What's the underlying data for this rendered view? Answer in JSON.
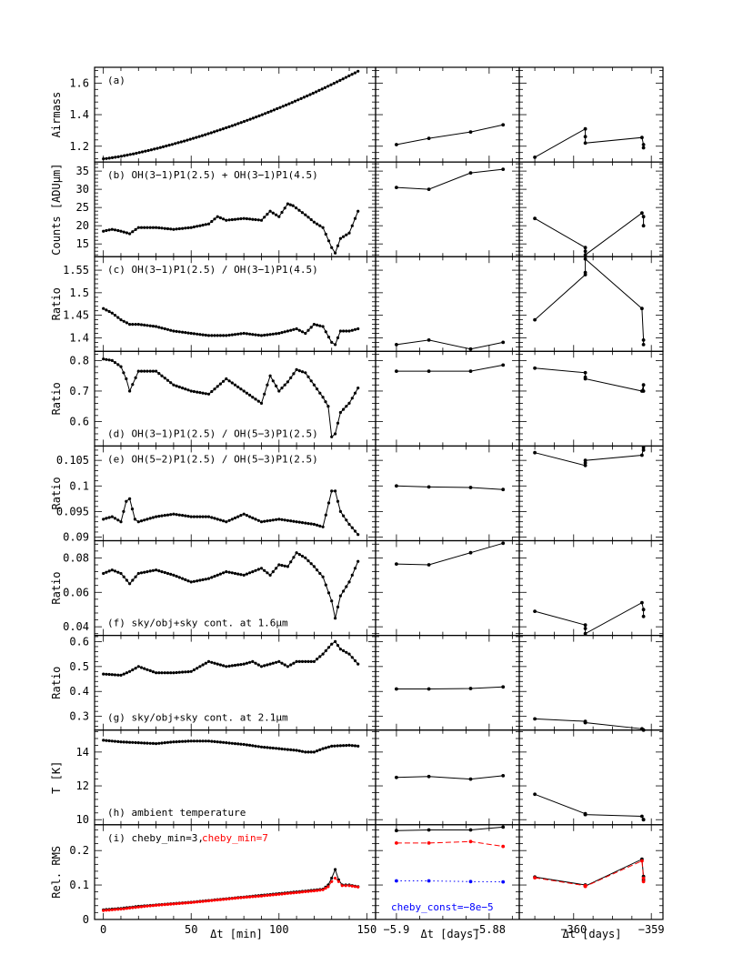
{
  "figure": {
    "x_axis_labels": [
      "Δt [min]",
      "Δt [days]",
      "Δt [days]"
    ],
    "left_ticks": [
      "0",
      "50",
      "100",
      "150"
    ],
    "mid_ticks": [
      "−5.9",
      "−5.88"
    ],
    "right_ticks": [
      "−360",
      "−359"
    ]
  },
  "panels": [
    {
      "id": "a",
      "ylabel": "Airmass",
      "label": "(a)",
      "ticks": [
        "1.2",
        "1.4",
        "1.6"
      ]
    },
    {
      "id": "b",
      "ylabel": "Counts [ADUμm]",
      "label": "(b) OH(3−1)P1(2.5) + OH(3−1)P1(4.5)",
      "ticks": [
        "15",
        "20",
        "25",
        "30",
        "35"
      ]
    },
    {
      "id": "c",
      "ylabel": "Ratio",
      "label": "(c) OH(3−1)P1(2.5) / OH(3−1)P1(4.5)",
      "ticks": [
        "1.4",
        "1.45",
        "1.5",
        "1.55"
      ]
    },
    {
      "id": "d",
      "ylabel": "Ratio",
      "label": "(d) OH(3−1)P1(2.5) / OH(5−3)P1(2.5)",
      "ticks": [
        "0.6",
        "0.7",
        "0.8"
      ]
    },
    {
      "id": "e",
      "ylabel": "Ratio",
      "label": "(e) OH(5−2)P1(2.5) / OH(5−3)P1(2.5)",
      "ticks": [
        "0.09",
        "0.095",
        "0.1",
        "0.105"
      ]
    },
    {
      "id": "f",
      "ylabel": "Ratio",
      "label": "(f) sky/obj+sky cont. at 1.6μm",
      "ticks": [
        "0.04",
        "0.06",
        "0.08"
      ]
    },
    {
      "id": "g",
      "ylabel": "Ratio",
      "label": "(g) sky/obj+sky cont. at 2.1μm",
      "ticks": [
        "0.3",
        "0.4",
        "0.5",
        "0.6"
      ]
    },
    {
      "id": "h",
      "ylabel": "T [K]",
      "label": "(h) ambient temperature",
      "ticks": [
        "10",
        "12",
        "14"
      ]
    },
    {
      "id": "i",
      "ylabel": "Rel. RMS",
      "label": "(i) cheby_min=3,",
      "label_red": "cheby_min=7",
      "label_blue": "cheby_const=−8e−5",
      "ticks": [
        "0",
        "0.1",
        "0.2"
      ]
    }
  ],
  "colors": {
    "red": "#ff0000",
    "blue": "#0000ff",
    "black": "#000000"
  },
  "chart_data": [
    {
      "panel": "a",
      "type": "line",
      "ylabel": "Airmass",
      "ylim": [
        1.1,
        1.7
      ],
      "left": {
        "x": [
          0,
          145
        ],
        "y": [
          1.12,
          1.675
        ],
        "shape": "exponential",
        "n": 86
      },
      "mid": {
        "x": [
          -5.9,
          -5.893,
          -5.884,
          -5.877
        ],
        "y": [
          1.21,
          1.25,
          1.29,
          1.335
        ]
      },
      "right": {
        "x": [
          -360.5,
          -359.85,
          -359.85,
          -359.85,
          -359.12,
          -359.1,
          -359.1
        ],
        "y": [
          1.13,
          1.31,
          1.26,
          1.22,
          1.255,
          1.21,
          1.19
        ]
      }
    },
    {
      "panel": "b",
      "type": "line",
      "ylabel": "Counts [ADUμm]",
      "ylim": [
        11.5,
        37.5
      ],
      "left": {
        "x": [
          0,
          5,
          10,
          15,
          20,
          30,
          40,
          50,
          60,
          65,
          70,
          80,
          90,
          95,
          100,
          105,
          108,
          115,
          120,
          125,
          130,
          132,
          135,
          140,
          145
        ],
        "y": [
          18.5,
          19,
          18.5,
          17.8,
          19.5,
          19.5,
          19,
          19.5,
          20.5,
          22.5,
          21.5,
          22,
          21.5,
          24,
          22.5,
          26,
          25.5,
          23,
          21,
          19.5,
          14,
          12.5,
          16.5,
          18,
          24
        ]
      },
      "mid": {
        "x": [
          -5.9,
          -5.893,
          -5.884,
          -5.877
        ],
        "y": [
          30.5,
          30,
          34.5,
          35.5
        ]
      },
      "right": {
        "x": [
          -360.5,
          -359.85,
          -359.85,
          -359.85,
          -359.12,
          -359.1,
          -359.1
        ],
        "y": [
          22,
          14,
          13,
          12,
          23.5,
          22.5,
          20
        ]
      }
    },
    {
      "panel": "c",
      "type": "line",
      "ylabel": "Ratio",
      "ylim": [
        1.37,
        1.58
      ],
      "left": {
        "x": [
          0,
          5,
          10,
          15,
          20,
          30,
          40,
          50,
          60,
          70,
          80,
          90,
          100,
          110,
          115,
          120,
          125,
          130,
          132,
          135,
          140,
          145
        ],
        "y": [
          1.465,
          1.455,
          1.44,
          1.43,
          1.43,
          1.425,
          1.415,
          1.41,
          1.405,
          1.405,
          1.41,
          1.405,
          1.41,
          1.42,
          1.41,
          1.43,
          1.425,
          1.39,
          1.385,
          1.415,
          1.415,
          1.42
        ]
      },
      "mid": {
        "x": [
          -5.9,
          -5.893,
          -5.884,
          -5.877
        ],
        "y": [
          1.385,
          1.395,
          1.375,
          1.39
        ]
      },
      "right": {
        "x": [
          -360.5,
          -359.85,
          -359.85,
          -359.85,
          -359.12,
          -359.1,
          -359.1
        ],
        "y": [
          1.44,
          1.54,
          1.545,
          1.575,
          1.465,
          1.395,
          1.385
        ]
      }
    },
    {
      "panel": "d",
      "type": "line",
      "ylabel": "Ratio",
      "ylim": [
        0.52,
        0.83
      ],
      "left": {
        "x": [
          0,
          5,
          10,
          13,
          15,
          20,
          30,
          40,
          50,
          60,
          70,
          80,
          90,
          95,
          100,
          105,
          110,
          115,
          120,
          125,
          128,
          130,
          132,
          135,
          140,
          145
        ],
        "y": [
          0.805,
          0.8,
          0.78,
          0.74,
          0.7,
          0.765,
          0.765,
          0.72,
          0.7,
          0.69,
          0.74,
          0.7,
          0.66,
          0.75,
          0.7,
          0.73,
          0.77,
          0.76,
          0.72,
          0.68,
          0.65,
          0.55,
          0.56,
          0.63,
          0.66,
          0.71
        ]
      },
      "mid": {
        "x": [
          -5.9,
          -5.893,
          -5.884,
          -5.877
        ],
        "y": [
          0.765,
          0.765,
          0.765,
          0.785
        ]
      },
      "right": {
        "x": [
          -360.5,
          -359.85,
          -359.85,
          -359.85,
          -359.12,
          -359.1,
          -359.1
        ],
        "y": [
          0.775,
          0.76,
          0.745,
          0.74,
          0.7,
          0.72,
          0.7
        ]
      }
    },
    {
      "panel": "e",
      "type": "line",
      "ylabel": "Ratio",
      "ylim": [
        0.0893,
        0.1078
      ],
      "left": {
        "x": [
          0,
          5,
          10,
          13,
          15,
          18,
          20,
          30,
          40,
          50,
          60,
          70,
          80,
          90,
          100,
          110,
          120,
          125,
          130,
          132,
          135,
          140,
          145
        ],
        "y": [
          0.0935,
          0.094,
          0.093,
          0.097,
          0.0975,
          0.0935,
          0.093,
          0.094,
          0.0945,
          0.094,
          0.094,
          0.093,
          0.0945,
          0.093,
          0.0935,
          0.093,
          0.0925,
          0.092,
          0.099,
          0.099,
          0.095,
          0.0925,
          0.0905
        ]
      },
      "mid": {
        "x": [
          -5.9,
          -5.893,
          -5.884,
          -5.877
        ],
        "y": [
          0.1,
          0.0998,
          0.0997,
          0.0993
        ]
      },
      "right": {
        "x": [
          -360.5,
          -359.85,
          -359.85,
          -359.85,
          -359.12,
          -359.1,
          -359.1
        ],
        "y": [
          0.1065,
          0.104,
          0.1045,
          0.105,
          0.106,
          0.1075,
          0.107
        ]
      }
    },
    {
      "panel": "f",
      "type": "line",
      "ylabel": "Ratio",
      "ylim": [
        0.035,
        0.09
      ],
      "left": {
        "x": [
          0,
          5,
          10,
          15,
          20,
          30,
          40,
          50,
          60,
          70,
          80,
          90,
          95,
          100,
          105,
          110,
          115,
          120,
          125,
          130,
          132,
          135,
          140,
          145
        ],
        "y": [
          0.071,
          0.073,
          0.071,
          0.065,
          0.071,
          0.073,
          0.07,
          0.066,
          0.068,
          0.072,
          0.07,
          0.074,
          0.07,
          0.076,
          0.075,
          0.083,
          0.08,
          0.075,
          0.069,
          0.055,
          0.045,
          0.058,
          0.066,
          0.078
        ]
      },
      "mid": {
        "x": [
          -5.9,
          -5.893,
          -5.884,
          -5.877
        ],
        "y": [
          0.0765,
          0.076,
          0.083,
          0.0885
        ]
      },
      "right": {
        "x": [
          -360.5,
          -359.85,
          -359.85,
          -359.85,
          -359.12,
          -359.1,
          -359.1
        ],
        "y": [
          0.049,
          0.041,
          0.039,
          0.036,
          0.054,
          0.05,
          0.046
        ]
      }
    },
    {
      "panel": "g",
      "type": "line",
      "ylabel": "Ratio",
      "ylim": [
        0.245,
        0.625
      ],
      "left": {
        "x": [
          0,
          10,
          15,
          20,
          30,
          40,
          50,
          60,
          70,
          80,
          85,
          90,
          100,
          105,
          110,
          120,
          125,
          130,
          132,
          135,
          140,
          145
        ],
        "y": [
          0.47,
          0.465,
          0.48,
          0.5,
          0.475,
          0.475,
          0.48,
          0.52,
          0.5,
          0.51,
          0.52,
          0.5,
          0.52,
          0.5,
          0.52,
          0.52,
          0.55,
          0.59,
          0.6,
          0.57,
          0.55,
          0.51
        ]
      },
      "mid": {
        "x": [
          -5.9,
          -5.893,
          -5.884,
          -5.877
        ],
        "y": [
          0.41,
          0.41,
          0.412,
          0.418
        ]
      },
      "right": {
        "x": [
          -360.5,
          -359.85,
          -359.85,
          -359.85,
          -359.12,
          -359.1,
          -359.1
        ],
        "y": [
          0.29,
          0.28,
          0.275,
          0.275,
          0.25,
          0.245,
          0.245
        ]
      }
    },
    {
      "panel": "h",
      "type": "line",
      "ylabel": "T [K]",
      "ylim": [
        9.7,
        15.3
      ],
      "left": {
        "x": [
          0,
          10,
          20,
          30,
          40,
          50,
          60,
          70,
          80,
          90,
          100,
          110,
          115,
          120,
          125,
          130,
          140,
          145
        ],
        "y": [
          14.7,
          14.6,
          14.55,
          14.5,
          14.6,
          14.65,
          14.65,
          14.55,
          14.45,
          14.3,
          14.2,
          14.1,
          14.0,
          14.0,
          14.2,
          14.35,
          14.4,
          14.35
        ]
      },
      "mid": {
        "x": [
          -5.9,
          -5.893,
          -5.884,
          -5.877
        ],
        "y": [
          12.5,
          12.55,
          12.4,
          12.6
        ]
      },
      "right": {
        "x": [
          -360.5,
          -359.85,
          -359.85,
          -359.85,
          -359.12,
          -359.1,
          -359.1
        ],
        "y": [
          11.5,
          10.35,
          10.3,
          10.3,
          10.2,
          10.0,
          10.0
        ]
      }
    },
    {
      "panel": "i",
      "type": "line",
      "ylabel": "Rel. RMS",
      "ylim": [
        0,
        0.275
      ],
      "left": {
        "x": [
          0,
          10,
          20,
          30,
          40,
          50,
          60,
          70,
          80,
          90,
          100,
          110,
          120,
          125,
          128,
          130,
          132,
          134,
          136,
          140,
          145
        ],
        "y": [
          0.028,
          0.032,
          0.038,
          0.042,
          0.046,
          0.05,
          0.055,
          0.06,
          0.065,
          0.07,
          0.075,
          0.08,
          0.085,
          0.088,
          0.1,
          0.12,
          0.145,
          0.115,
          0.1,
          0.1,
          0.095
        ]
      },
      "left_red": {
        "x": [
          0,
          10,
          20,
          30,
          40,
          50,
          60,
          70,
          80,
          90,
          100,
          110,
          120,
          125,
          128,
          130,
          132,
          134,
          136,
          140,
          145
        ],
        "y": [
          0.026,
          0.03,
          0.036,
          0.041,
          0.045,
          0.049,
          0.054,
          0.059,
          0.064,
          0.068,
          0.073,
          0.078,
          0.083,
          0.086,
          0.095,
          0.11,
          0.12,
          0.11,
          0.098,
          0.098,
          0.094
        ]
      },
      "mid": {
        "x": [
          -5.9,
          -5.893,
          -5.884,
          -5.877
        ],
        "y": [
          0.258,
          0.26,
          0.26,
          0.268
        ]
      },
      "mid_red": {
        "x": [
          -5.9,
          -5.893,
          -5.884,
          -5.877
        ],
        "y": [
          0.222,
          0.222,
          0.226,
          0.212
        ]
      },
      "mid_blue": {
        "x": [
          -5.9,
          -5.893,
          -5.884,
          -5.877
        ],
        "y": [
          0.112,
          0.112,
          0.11,
          0.109
        ]
      },
      "right": {
        "x": [
          -360.5,
          -359.85,
          -359.85,
          -359.85,
          -359.12,
          -359.1,
          -359.1
        ],
        "y": [
          0.123,
          0.1,
          0.098,
          0.097,
          0.175,
          0.125,
          0.115
        ]
      },
      "right_red": {
        "x": [
          -360.5,
          -359.85,
          -359.85,
          -359.85,
          -359.12,
          -359.1,
          -359.1
        ],
        "y": [
          0.121,
          0.098,
          0.097,
          0.096,
          0.17,
          0.12,
          0.11
        ]
      }
    }
  ]
}
